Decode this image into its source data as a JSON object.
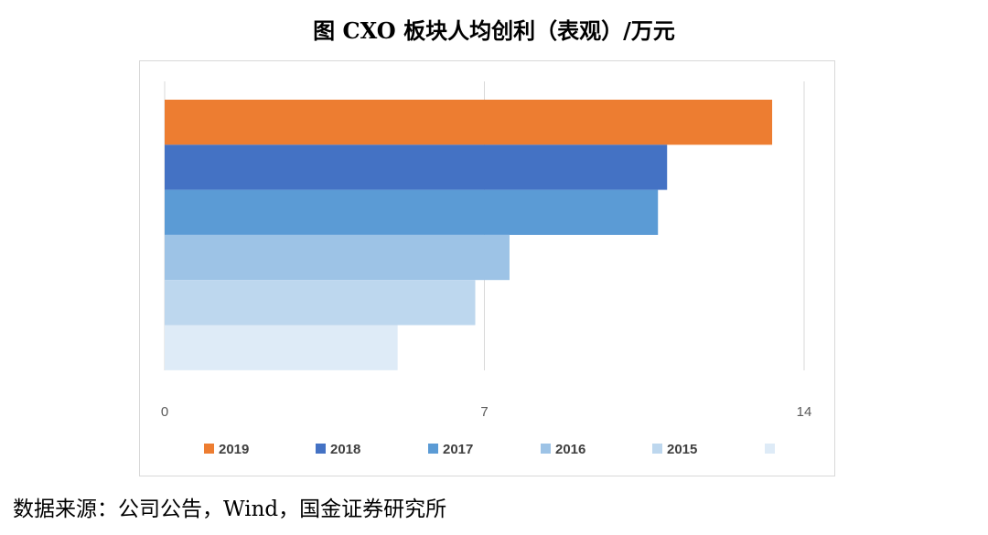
{
  "title": "图 CXO 板块人均创利（表观）/万元",
  "source": "数据来源：公司公告，Wind，国金证券研究所",
  "chart_data": {
    "type": "bar",
    "orientation": "horizontal",
    "title": "图 CXO 板块人均创利（表观）/万元",
    "xlim": [
      0,
      14
    ],
    "x_ticks": [
      "0",
      "7",
      "14"
    ],
    "grid": true,
    "legend_position": "bottom",
    "series": [
      {
        "name": "2019",
        "value": 13.3,
        "color": "#ed7d31"
      },
      {
        "name": "2018",
        "value": 11.0,
        "color": "#4472c4"
      },
      {
        "name": "2017",
        "value": 10.8,
        "color": "#5b9bd5"
      },
      {
        "name": "2016",
        "value": 7.55,
        "color": "#9dc3e6"
      },
      {
        "name": "2015",
        "value": 6.8,
        "color": "#bdd7ee"
      },
      {
        "name": "",
        "value": 5.1,
        "color": "#deebf7"
      }
    ]
  }
}
